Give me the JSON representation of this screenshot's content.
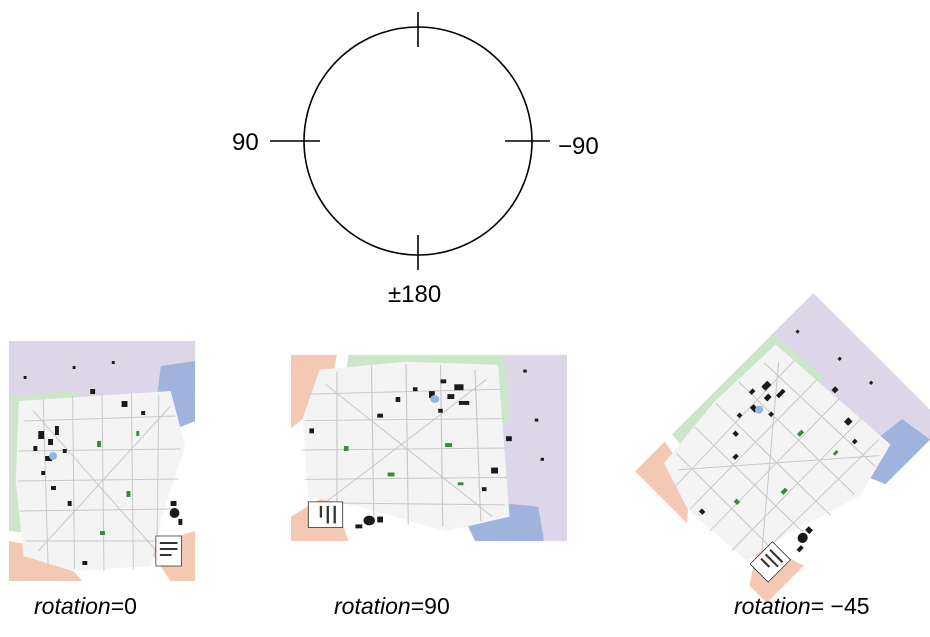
{
  "compass": {
    "left_label": "90",
    "right_label": "−90",
    "bottom_label": "±180"
  },
  "captions": [
    {
      "term": "rotation",
      "value": "=0"
    },
    {
      "term": "rotation",
      "value": "=90"
    },
    {
      "term": "rotation",
      "value": "= −45"
    }
  ],
  "map": {
    "colors": {
      "purple_zone": "#ddd6e8",
      "green_zone": "#cbe6c8",
      "peach_zone": "#f4c9b4",
      "blue_zone": "#9fb3dc",
      "road_network": "#c8c8c8",
      "dark_feature": "#1a1a1a"
    }
  }
}
